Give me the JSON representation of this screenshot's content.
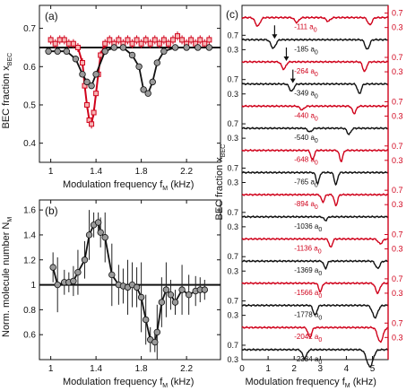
{
  "colors": {
    "black": "#111111",
    "red": "#d0021b",
    "gray": "#9a9a9a"
  },
  "chart_data": [
    {
      "panel": "(a)",
      "type": "scatter",
      "xlabel": "Modulation frequency f",
      "xlabel_sub": "M",
      "xlabel_unit": " (kHz)",
      "ylabel": "BEC fraction x",
      "ylabel_sub": "BEC",
      "xlim": [
        0.9,
        2.5
      ],
      "ylim": [
        0.35,
        0.76
      ],
      "xticks": [
        "1",
        "1.4",
        "1.8",
        "2.2"
      ],
      "xtick_values": [
        1.0,
        1.4,
        1.8,
        2.2
      ],
      "yticks": [
        "0.4",
        "0.5",
        "0.6",
        "0.7"
      ],
      "ytick_values": [
        0.4,
        0.5,
        0.6,
        0.7
      ],
      "baseline": 0.65,
      "series": [
        {
          "marker": "square-red",
          "x": [
            1.0,
            1.04,
            1.08,
            1.12,
            1.16,
            1.2,
            1.24,
            1.28,
            1.3,
            1.32,
            1.34,
            1.36,
            1.38,
            1.4,
            1.42,
            1.44,
            1.48,
            1.52,
            1.56,
            1.6,
            1.64,
            1.68,
            1.72,
            1.76,
            1.8,
            1.84,
            1.88,
            1.92,
            1.96,
            2.0,
            2.04,
            2.08,
            2.12,
            2.16,
            2.2,
            2.24,
            2.28,
            2.32,
            2.36,
            2.4
          ],
          "y": [
            0.67,
            0.66,
            0.67,
            0.67,
            0.66,
            0.66,
            0.65,
            0.61,
            0.55,
            0.5,
            0.46,
            0.45,
            0.48,
            0.53,
            0.58,
            0.63,
            0.66,
            0.67,
            0.66,
            0.67,
            0.66,
            0.67,
            0.66,
            0.67,
            0.66,
            0.67,
            0.66,
            0.67,
            0.66,
            0.67,
            0.66,
            0.67,
            0.68,
            0.67,
            0.66,
            0.67,
            0.66,
            0.67,
            0.66,
            0.67
          ]
        },
        {
          "marker": "circle-gray",
          "x": [
            0.98,
            1.06,
            1.14,
            1.22,
            1.28,
            1.32,
            1.36,
            1.4,
            1.48,
            1.56,
            1.64,
            1.72,
            1.78,
            1.82,
            1.86,
            1.9,
            1.94,
            2.0,
            2.1,
            2.2,
            2.3,
            2.4
          ],
          "y": [
            0.64,
            0.64,
            0.64,
            0.62,
            0.58,
            0.56,
            0.55,
            0.58,
            0.64,
            0.65,
            0.65,
            0.63,
            0.6,
            0.54,
            0.53,
            0.56,
            0.61,
            0.64,
            0.65,
            0.65,
            0.65,
            0.65
          ]
        }
      ]
    },
    {
      "panel": "(b)",
      "type": "scatter",
      "xlabel": "Modulation frequency f",
      "xlabel_sub": "M",
      "xlabel_unit": " (kHz)",
      "ylabel": "Norm. molecule number N",
      "ylabel_sub": "M",
      "xlim": [
        0.9,
        2.5
      ],
      "ylim": [
        0.4,
        1.68
      ],
      "xticks": [
        "1",
        "1.4",
        "1.8",
        "2.2"
      ],
      "xtick_values": [
        1.0,
        1.4,
        1.8,
        2.2
      ],
      "yticks": [
        "0.6",
        "0.8",
        "1",
        "1.2",
        "1.4",
        "1.6"
      ],
      "ytick_values": [
        0.6,
        0.8,
        1.0,
        1.2,
        1.4,
        1.6
      ],
      "baseline": 1.0,
      "series": [
        {
          "marker": "circle-gray",
          "x": [
            1.02,
            1.06,
            1.12,
            1.16,
            1.2,
            1.24,
            1.3,
            1.34,
            1.38,
            1.42,
            1.44,
            1.48,
            1.54,
            1.6,
            1.64,
            1.68,
            1.72,
            1.76,
            1.8,
            1.84,
            1.88,
            1.92,
            1.94,
            1.98,
            2.02,
            2.06,
            2.1,
            2.16,
            2.22,
            2.28,
            2.32,
            2.36
          ],
          "y": [
            1.14,
            1.0,
            1.02,
            1.02,
            1.03,
            1.1,
            1.2,
            1.4,
            1.48,
            1.5,
            1.42,
            1.38,
            1.08,
            1.0,
            0.99,
            0.98,
            1.0,
            0.98,
            0.9,
            0.72,
            0.56,
            0.54,
            0.62,
            0.86,
            0.96,
            0.92,
            0.86,
            0.96,
            0.92,
            0.95,
            0.96,
            0.96
          ],
          "err": [
            0.12,
            0.22,
            0.1,
            0.08,
            0.12,
            0.18,
            0.15,
            0.2,
            0.1,
            0.08,
            0.12,
            0.2,
            0.25,
            0.16,
            0.14,
            0.22,
            0.18,
            0.16,
            0.28,
            0.2,
            0.1,
            0.08,
            0.22,
            0.2,
            0.22,
            0.12,
            0.1,
            0.2,
            0.16,
            0.12,
            0.1,
            0.08
          ]
        }
      ]
    },
    {
      "panel": "(c)",
      "type": "line",
      "xlabel": "Modulation frequency f",
      "xlabel_sub": "M",
      "xlabel_unit": " (kHz)",
      "ylabel": "BEC fraction x",
      "ylabel_sub": "BEC",
      "xlim": [
        0,
        5.6
      ],
      "xticks": [
        "0",
        "1",
        "2",
        "3",
        "4",
        "5"
      ],
      "xtick_values": [
        0,
        1,
        2,
        3,
        4,
        5
      ],
      "ytick_labels": [
        "0.7",
        "0.3"
      ],
      "ytick_values": [
        0.7,
        0.3
      ],
      "series": [
        {
          "label": "-111 a",
          "label_sub": "0",
          "color": "red",
          "side": "right",
          "dips": [
            [
              0.6,
              0.35,
              0.09
            ],
            [
              2.1,
              0.2,
              0.08
            ],
            [
              3.3,
              0.15,
              0.08
            ],
            [
              4.9,
              0.3,
              0.08
            ]
          ],
          "arrows": []
        },
        {
          "label": "-185 a",
          "label_sub": "0",
          "color": "black",
          "side": "left",
          "dips": [
            [
              1.2,
              0.35,
              0.09
            ],
            [
              4.8,
              0.4,
              0.08
            ]
          ],
          "arrows": [
            1.25
          ]
        },
        {
          "label": "-264 a",
          "label_sub": "0",
          "color": "red",
          "side": "right",
          "dips": [
            [
              1.6,
              0.3,
              0.08
            ],
            [
              4.7,
              0.4,
              0.07
            ]
          ],
          "arrows": [
            1.7
          ]
        },
        {
          "label": "-349 a",
          "label_sub": "0",
          "color": "black",
          "side": "left",
          "dips": [
            [
              1.9,
              0.3,
              0.08
            ],
            [
              4.5,
              0.4,
              0.07
            ]
          ],
          "arrows": [
            1.95
          ]
        },
        {
          "label": "-440 a",
          "label_sub": "0",
          "color": "red",
          "side": "right",
          "dips": [
            [
              2.3,
              0.15,
              0.08
            ],
            [
              4.3,
              0.3,
              0.07
            ]
          ],
          "arrows": []
        },
        {
          "label": "-540 a",
          "label_sub": "0",
          "color": "black",
          "side": "left",
          "dips": [
            [
              2.6,
              0.15,
              0.08
            ],
            [
              4.1,
              0.25,
              0.07
            ]
          ],
          "arrows": []
        },
        {
          "label": "-648 a",
          "label_sub": "0",
          "color": "red",
          "side": "right",
          "dips": [
            [
              2.7,
              0.4,
              0.06
            ],
            [
              3.8,
              0.45,
              0.06
            ]
          ],
          "arrows": []
        },
        {
          "label": "-765 a",
          "label_sub": "0",
          "color": "black",
          "side": "left",
          "dips": [
            [
              2.9,
              0.45,
              0.06
            ],
            [
              3.6,
              0.5,
              0.06
            ]
          ],
          "arrows": []
        },
        {
          "label": "-894 a",
          "label_sub": "0",
          "color": "red",
          "side": "right",
          "dips": [
            [
              3.1,
              0.3,
              0.06
            ],
            [
              3.6,
              0.45,
              0.06
            ]
          ],
          "arrows": []
        },
        {
          "label": "-1036 a",
          "label_sub": "0",
          "color": "black",
          "side": "left",
          "dips": [
            [
              3.2,
              0.15,
              0.06
            ]
          ],
          "arrows": []
        },
        {
          "label": "-1136 a",
          "label_sub": "0",
          "color": "red",
          "side": "right",
          "dips": [
            [
              3.4,
              0.35,
              0.06
            ],
            [
              5.3,
              0.2,
              0.08
            ]
          ],
          "arrows": []
        },
        {
          "label": "-1369 a",
          "label_sub": "0",
          "color": "black",
          "side": "left",
          "dips": [
            [
              3.2,
              0.3,
              0.06
            ],
            [
              5.2,
              0.3,
              0.08
            ]
          ],
          "arrows": []
        },
        {
          "label": "-1566 a",
          "label_sub": "0",
          "color": "red",
          "side": "right",
          "dips": [
            [
              3.0,
              0.35,
              0.06
            ],
            [
              5.2,
              0.4,
              0.08
            ]
          ],
          "arrows": []
        },
        {
          "label": "-1778 a",
          "label_sub": "0",
          "color": "black",
          "side": "left",
          "dips": [
            [
              2.8,
              0.4,
              0.07
            ],
            [
              5.1,
              0.5,
              0.1
            ]
          ],
          "arrows": []
        },
        {
          "label": "-2042 a",
          "label_sub": "0",
          "color": "red",
          "side": "right",
          "dips": [
            [
              2.6,
              0.4,
              0.07
            ],
            [
              5.3,
              0.6,
              0.1
            ]
          ],
          "arrows": []
        },
        {
          "label": "-2334 a",
          "label_sub": "0",
          "color": "black",
          "side": "left",
          "dips": [
            [
              2.4,
              0.35,
              0.08
            ],
            [
              4.9,
              0.7,
              0.12
            ]
          ],
          "arrows": []
        }
      ]
    }
  ]
}
